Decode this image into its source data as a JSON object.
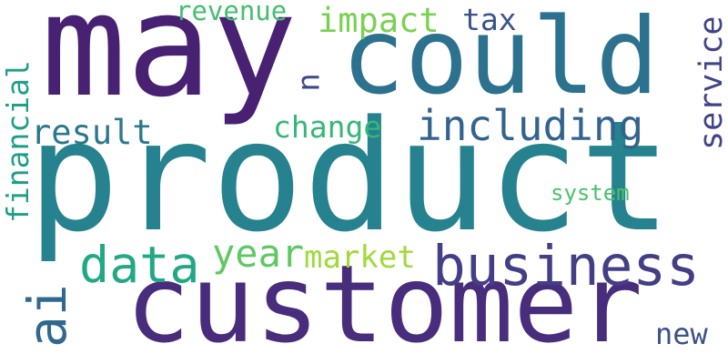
{
  "words": {
    "product": {
      "text": "product",
      "color": "#26828e"
    },
    "customer": {
      "text": "customer",
      "color": "#472d7b"
    },
    "may": {
      "text": "may",
      "color": "#482173"
    },
    "could": {
      "text": "could",
      "color": "#2c728e"
    },
    "business": {
      "text": "business",
      "color": "#433e85"
    },
    "data": {
      "text": "data",
      "color": "#22a884"
    },
    "including": {
      "text": "including",
      "color": "#33638d"
    },
    "impact": {
      "text": "impact",
      "color": "#7ad151"
    },
    "result": {
      "text": "result",
      "color": "#2a788e"
    },
    "change": {
      "text": "change",
      "color": "#35b779"
    },
    "revenue": {
      "text": "revenue",
      "color": "#44bf70"
    },
    "tax": {
      "text": "tax",
      "color": "#3b528b"
    },
    "year": {
      "text": "year",
      "color": "#5ec962"
    },
    "market": {
      "text": "market",
      "color": "#a0da39"
    },
    "system": {
      "text": "system",
      "color": "#4ac16d"
    },
    "service": {
      "text": "service",
      "color": "#414487"
    },
    "financial": {
      "text": "financial",
      "color": "#1f9e89"
    },
    "ai": {
      "text": "ai",
      "color": "#31688e"
    },
    "u": {
      "text": "u",
      "color": "#3e4989"
    },
    "new": {
      "text": "new",
      "color": "#3b528b"
    }
  }
}
